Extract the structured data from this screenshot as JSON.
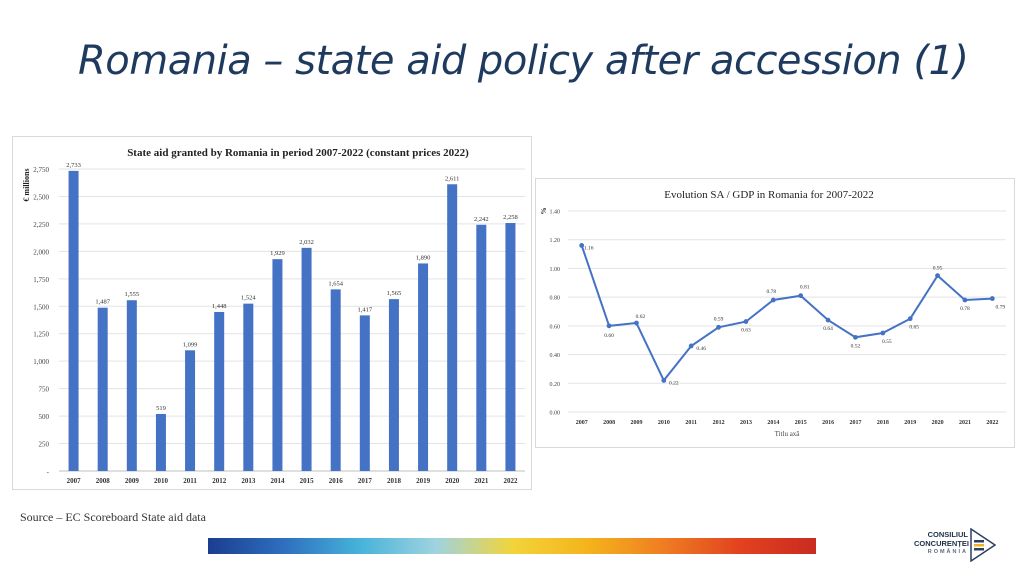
{
  "slide": {
    "title": "Romania – state aid policy after accession (1)",
    "source": "Source – EC Scoreboard State aid data",
    "logo": {
      "line1": "CONSILIUL",
      "line2": "CONCURENȚEI",
      "line3": "ROMÂNIA",
      "icon": "arrow-logo-icon"
    },
    "stripe_colors": [
      "#1c3d8f",
      "#2e6fbf",
      "#47b3d9",
      "#9fd3e0",
      "#f2d43a",
      "#f5b31c",
      "#ef7d22",
      "#e2421f",
      "#c92b20"
    ]
  },
  "chart_data": [
    {
      "type": "bar",
      "title": "State aid granted by Romania in period 2007-2022 (constant prices 2022)",
      "ylabel": "€ millions",
      "xlabel": "",
      "categories": [
        "2007",
        "2008",
        "2009",
        "2010",
        "2011",
        "2012",
        "2013",
        "2014",
        "2015",
        "2016",
        "2017",
        "2018",
        "2019",
        "2020",
        "2021",
        "2022"
      ],
      "values": [
        2733,
        1487,
        1555,
        519,
        1099,
        1448,
        1524,
        1929,
        2032,
        1654,
        1417,
        1565,
        1890,
        2611,
        2242,
        2258
      ],
      "value_labels": [
        "2,733",
        "1,487",
        "1,555",
        "519",
        "1,099",
        "1,448",
        "1,524",
        "1,929",
        "2,032",
        "1,654",
        "1,417",
        "1,565",
        "1,890",
        "2,611",
        "2,242",
        "2,258"
      ],
      "ylim": [
        0,
        2750
      ],
      "yticks": [
        0,
        250,
        500,
        750,
        1000,
        1250,
        1500,
        1750,
        2000,
        2250,
        2500,
        2750
      ],
      "ytick_labels": [
        "-",
        "250",
        "500",
        "750",
        "1,000",
        "1,250",
        "1,500",
        "1,750",
        "2,000",
        "2,250",
        "2,500",
        "2,750"
      ],
      "grid": true,
      "color": "#4472c4"
    },
    {
      "type": "line",
      "title": "Evolution SA / GDP in Romania for 2007-2022",
      "ylabel": "%",
      "xlabel": "Titlu axă",
      "categories": [
        "2007",
        "2008",
        "2009",
        "2010",
        "2011",
        "2012",
        "2013",
        "2014",
        "2015",
        "2016",
        "2017",
        "2018",
        "2019",
        "2020",
        "2021",
        "2022"
      ],
      "values": [
        1.16,
        0.6,
        0.62,
        0.22,
        0.46,
        0.59,
        0.63,
        0.78,
        0.81,
        0.64,
        0.52,
        0.55,
        0.65,
        0.95,
        0.78,
        0.79
      ],
      "value_labels": [
        "1.16",
        "0.60",
        "0.62",
        "0.22",
        "0.46",
        "0.59",
        "0.63",
        "0.78",
        "0.81",
        "0.64",
        "0.52",
        "0.55",
        "0.65",
        "0.95",
        "0.78",
        "0.79"
      ],
      "ylim": [
        0,
        1.4
      ],
      "yticks": [
        0,
        0.2,
        0.4,
        0.6,
        0.8,
        1.0,
        1.2,
        1.4
      ],
      "ytick_labels": [
        "0.00",
        "0.20",
        "0.40",
        "0.60",
        "0.80",
        "1.00",
        "1.20",
        "1.40"
      ],
      "grid": true,
      "color": "#4472c4"
    }
  ]
}
